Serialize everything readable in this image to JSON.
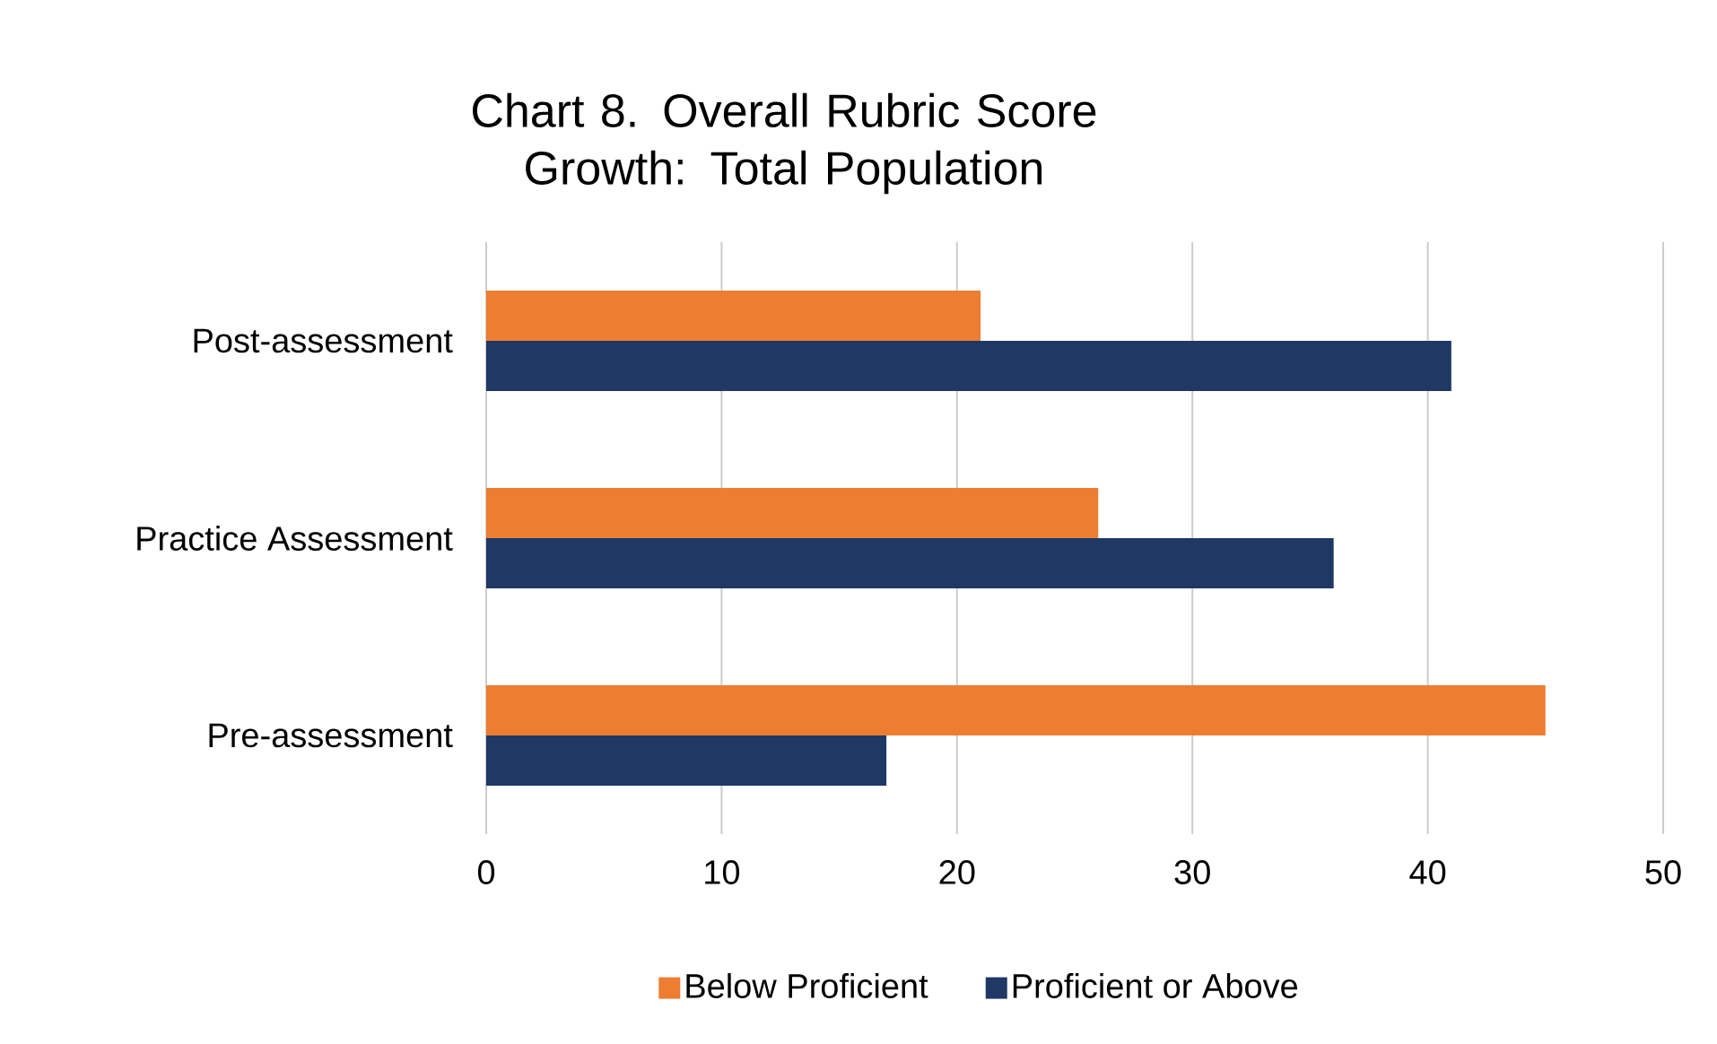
{
  "chart_data": {
    "type": "bar",
    "orientation": "horizontal",
    "title": "Chart 8. Overall Rubric Score Growth: Total Population",
    "categories": [
      "Post-assessment",
      "Practice Assessment",
      "Pre-assessment"
    ],
    "series": [
      {
        "name": "Below Proficient",
        "color": "#ed7d31",
        "values": [
          21,
          26,
          45
        ]
      },
      {
        "name": "Proficient or Above",
        "color": "#1f3864",
        "values": [
          41,
          36,
          17
        ]
      }
    ],
    "xlim": [
      0,
      50
    ],
    "xticks": [
      0,
      10,
      20,
      30,
      40,
      50
    ],
    "grid": "x",
    "legend": "bottom"
  }
}
